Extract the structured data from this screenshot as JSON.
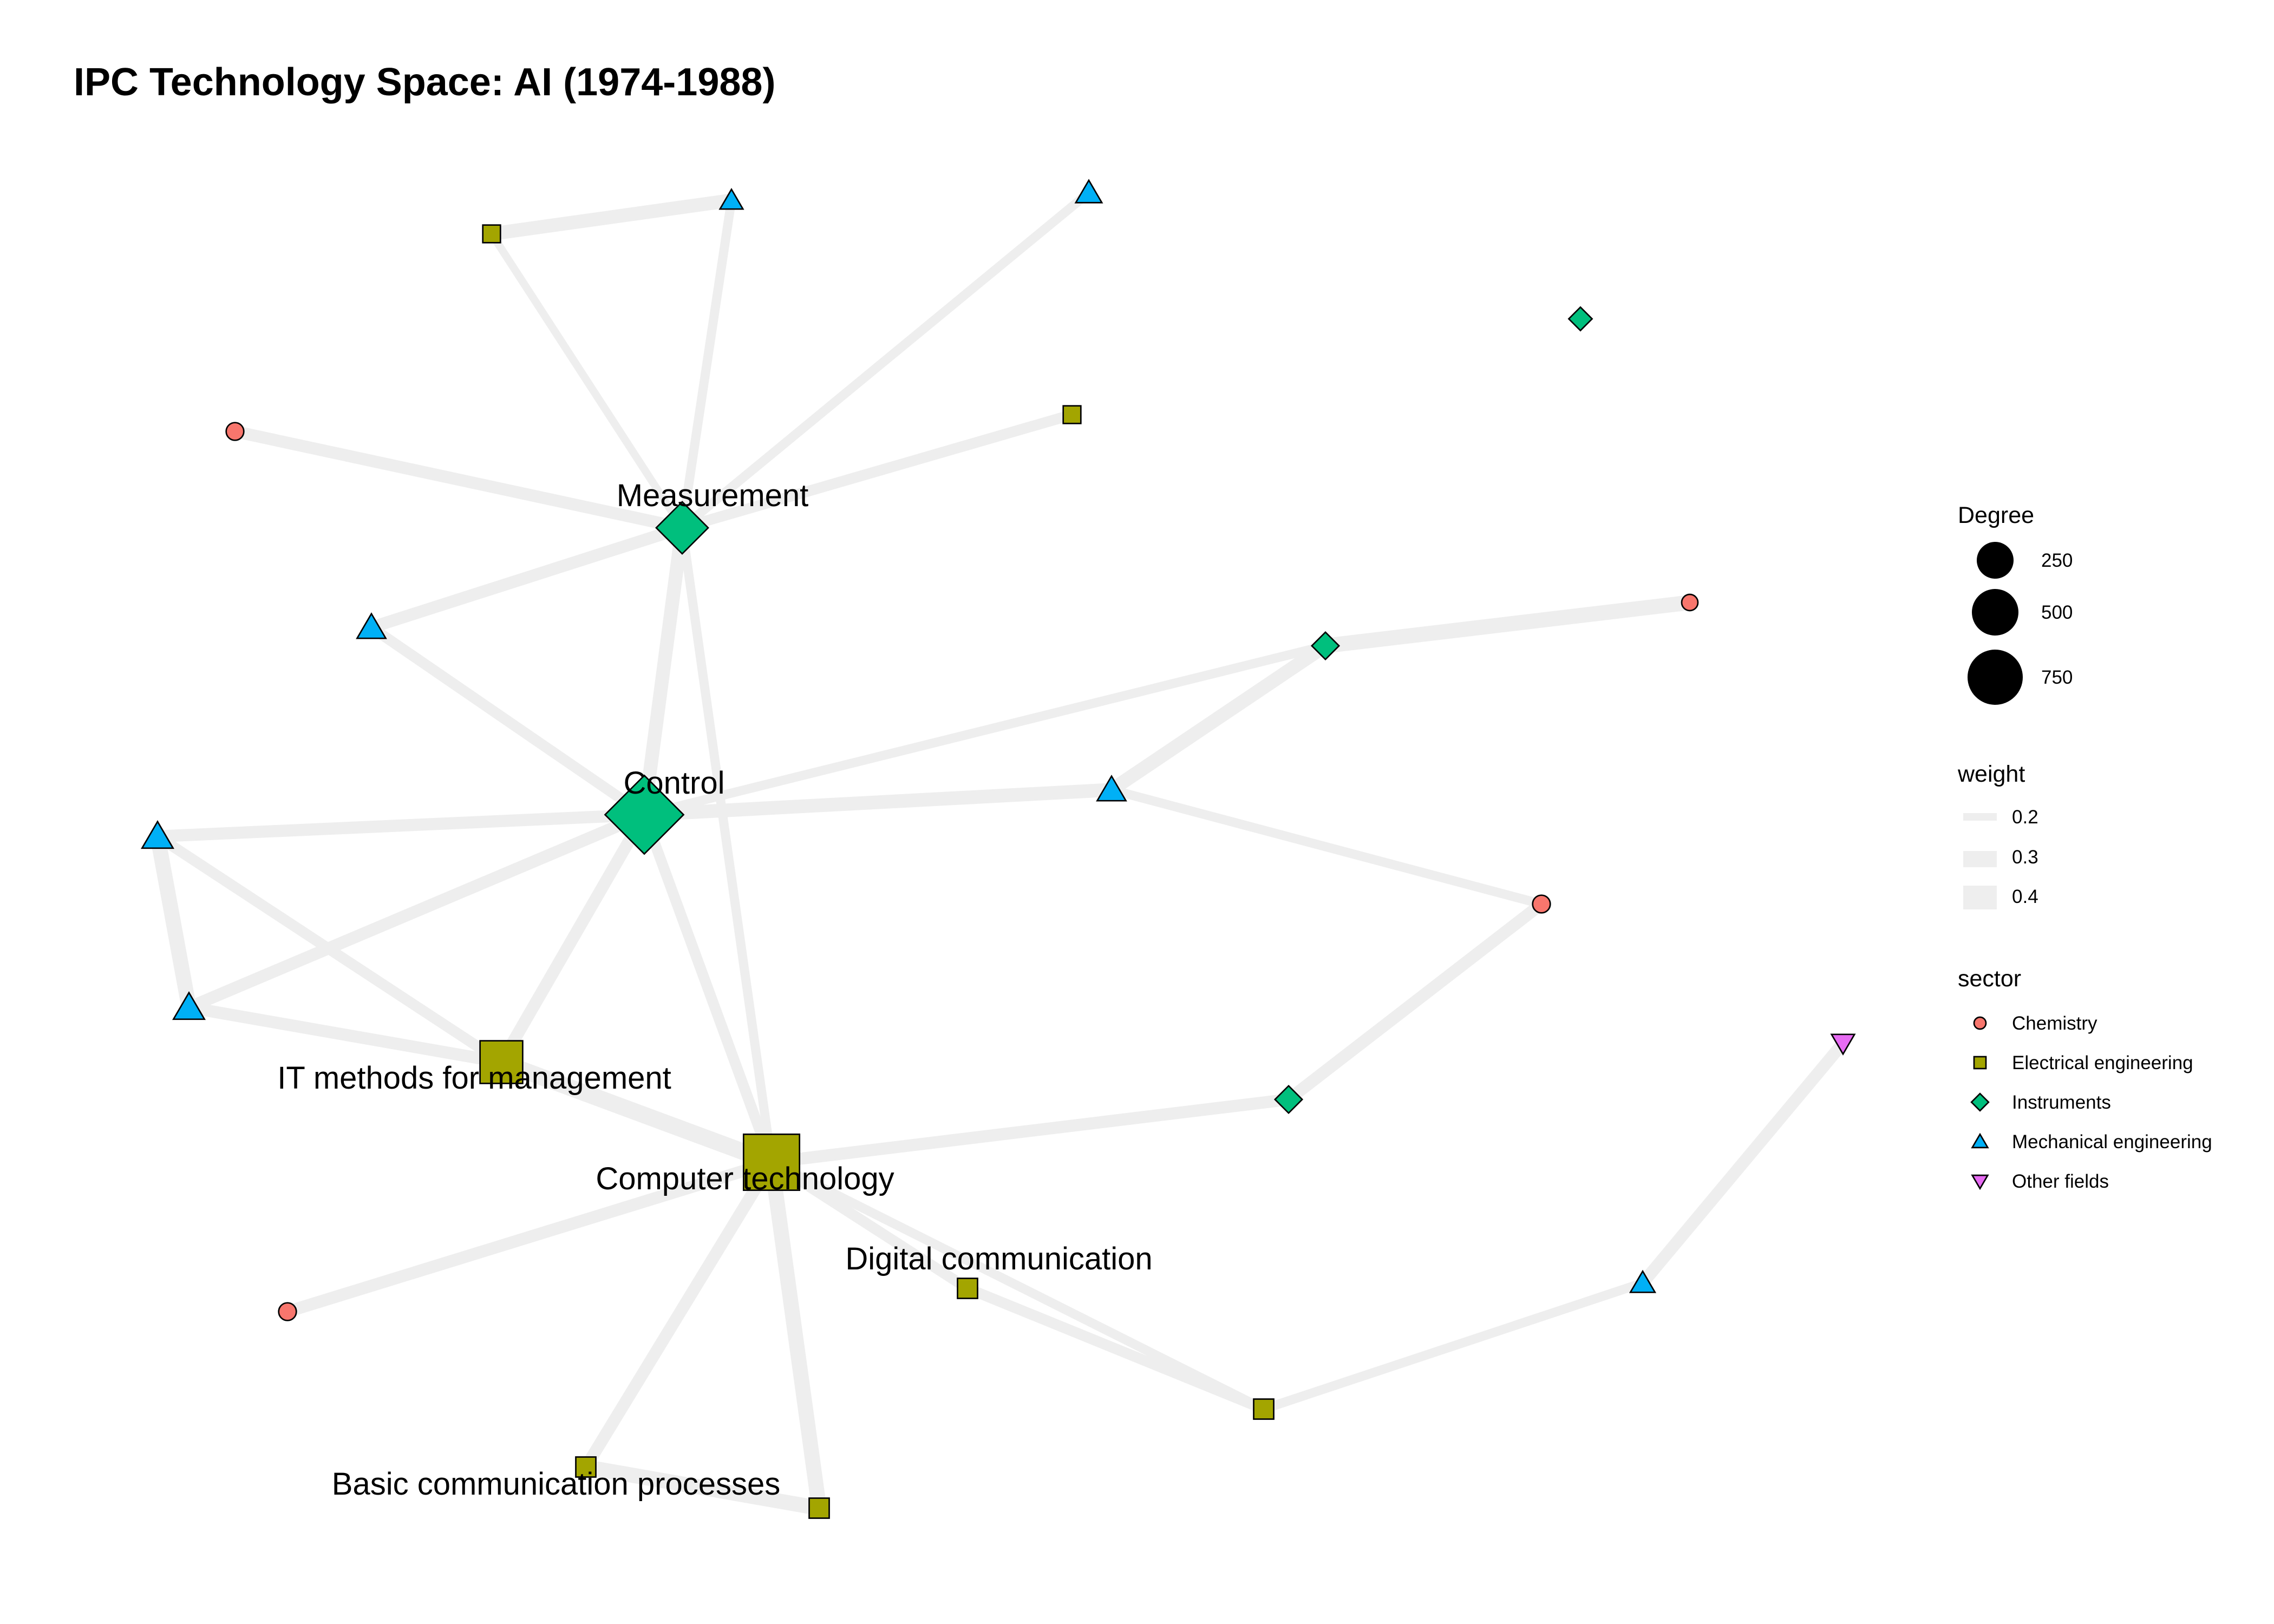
{
  "title": "IPC Technology Space: AI (1974-1988)",
  "colors": {
    "Chemistry": "#F8766D",
    "Electrical engineering": "#A3A500",
    "Instruments": "#00BF7D",
    "Mechanical engineering": "#00B0F6",
    "Other fields": "#E76BF3",
    "edge": "#eeeeee"
  },
  "shapes": {
    "Chemistry": "circle",
    "Electrical engineering": "square",
    "Instruments": "diamond",
    "Mechanical engineering": "triangle-up",
    "Other fields": "triangle-down"
  },
  "nodes": [
    {
      "id": "control",
      "sector": "Instruments",
      "degree": 800,
      "label": "Control"
    },
    {
      "id": "measurement",
      "sector": "Instruments",
      "degree": 300,
      "label": "Measurement"
    },
    {
      "id": "computer",
      "sector": "Electrical engineering",
      "degree": 850,
      "label": "Computer technology"
    },
    {
      "id": "itmethods",
      "sector": "Electrical engineering",
      "degree": 450,
      "label": "IT methods for management"
    },
    {
      "id": "digital",
      "sector": "Electrical engineering",
      "degree": 60,
      "label": "Digital communication"
    },
    {
      "id": "basic",
      "sector": "Electrical engineering",
      "degree": 60,
      "label": "Basic communication processes"
    },
    {
      "id": "ee_top",
      "sector": "Electrical engineering",
      "degree": 40,
      "label": ""
    },
    {
      "id": "ee_mid",
      "sector": "Electrical engineering",
      "degree": 40,
      "label": ""
    },
    {
      "id": "ee_bottom",
      "sector": "Electrical engineering",
      "degree": 60,
      "label": ""
    },
    {
      "id": "ee_right",
      "sector": "Electrical engineering",
      "degree": 60,
      "label": ""
    },
    {
      "id": "me_top1",
      "sector": "Mechanical engineering",
      "degree": 40,
      "label": ""
    },
    {
      "id": "me_top2",
      "sector": "Mechanical engineering",
      "degree": 60,
      "label": ""
    },
    {
      "id": "me_left",
      "sector": "Mechanical engineering",
      "degree": 80,
      "label": ""
    },
    {
      "id": "me_far_left",
      "sector": "Mechanical engineering",
      "degree": 100,
      "label": ""
    },
    {
      "id": "me_low_left",
      "sector": "Mechanical engineering",
      "degree": 100,
      "label": ""
    },
    {
      "id": "me_center",
      "sector": "Mechanical engineering",
      "degree": 80,
      "label": ""
    },
    {
      "id": "me_right",
      "sector": "Mechanical engineering",
      "degree": 50,
      "label": ""
    },
    {
      "id": "in_top",
      "sector": "Instruments",
      "degree": 30,
      "label": ""
    },
    {
      "id": "in_right",
      "sector": "Instruments",
      "degree": 50,
      "label": ""
    },
    {
      "id": "in_low",
      "sector": "Instruments",
      "degree": 50,
      "label": ""
    },
    {
      "id": "ch_top",
      "sector": "Chemistry",
      "degree": 40,
      "label": ""
    },
    {
      "id": "ch_right",
      "sector": "Chemistry",
      "degree": 30,
      "label": ""
    },
    {
      "id": "ch_mid",
      "sector": "Chemistry",
      "degree": 40,
      "label": ""
    },
    {
      "id": "ch_low",
      "sector": "Chemistry",
      "degree": 40,
      "label": ""
    },
    {
      "id": "of_right",
      "sector": "Other fields",
      "degree": 40,
      "label": ""
    }
  ],
  "edges": [
    {
      "source": "ee_top",
      "target": "me_top1",
      "weight": 0.35
    },
    {
      "source": "ee_top",
      "target": "measurement",
      "weight": 0.15
    },
    {
      "source": "me_top1",
      "target": "measurement",
      "weight": 0.2
    },
    {
      "source": "me_top2",
      "target": "measurement",
      "weight": 0.2
    },
    {
      "source": "ch_top",
      "target": "measurement",
      "weight": 0.3
    },
    {
      "source": "ee_mid",
      "target": "measurement",
      "weight": 0.25
    },
    {
      "source": "me_left",
      "target": "measurement",
      "weight": 0.3
    },
    {
      "source": "me_left",
      "target": "control",
      "weight": 0.25
    },
    {
      "source": "measurement",
      "target": "control",
      "weight": 0.35
    },
    {
      "source": "measurement",
      "target": "computer",
      "weight": 0.2
    },
    {
      "source": "in_right",
      "target": "ch_right",
      "weight": 0.4
    },
    {
      "source": "in_right",
      "target": "control",
      "weight": 0.2
    },
    {
      "source": "in_right",
      "target": "me_center",
      "weight": 0.35
    },
    {
      "source": "me_center",
      "target": "control",
      "weight": 0.35
    },
    {
      "source": "me_center",
      "target": "ch_mid",
      "weight": 0.2
    },
    {
      "source": "me_far_left",
      "target": "control",
      "weight": 0.3
    },
    {
      "source": "me_far_left",
      "target": "me_low_left",
      "weight": 0.4
    },
    {
      "source": "me_far_left",
      "target": "itmethods",
      "weight": 0.25
    },
    {
      "source": "me_low_left",
      "target": "control",
      "weight": 0.3
    },
    {
      "source": "me_low_left",
      "target": "itmethods",
      "weight": 0.3
    },
    {
      "source": "control",
      "target": "itmethods",
      "weight": 0.3
    },
    {
      "source": "control",
      "target": "computer",
      "weight": 0.25
    },
    {
      "source": "itmethods",
      "target": "computer",
      "weight": 0.45
    },
    {
      "source": "computer",
      "target": "in_low",
      "weight": 0.3
    },
    {
      "source": "in_low",
      "target": "ch_mid",
      "weight": 0.3
    },
    {
      "source": "computer",
      "target": "ch_low",
      "weight": 0.3
    },
    {
      "source": "computer",
      "target": "digital",
      "weight": 0.25
    },
    {
      "source": "computer",
      "target": "ee_bottom",
      "weight": 0.4
    },
    {
      "source": "computer",
      "target": "basic",
      "weight": 0.3
    },
    {
      "source": "computer",
      "target": "ee_right",
      "weight": 0.2
    },
    {
      "source": "basic",
      "target": "ee_bottom",
      "weight": 0.4
    },
    {
      "source": "digital",
      "target": "ee_right",
      "weight": 0.25
    },
    {
      "source": "ee_right",
      "target": "me_right",
      "weight": 0.2
    },
    {
      "source": "me_right",
      "target": "of_right",
      "weight": 0.3
    }
  ],
  "legend": {
    "degree": {
      "title": "Degree",
      "items": [
        {
          "label": "250",
          "value": 250
        },
        {
          "label": "500",
          "value": 500
        },
        {
          "label": "750",
          "value": 750
        }
      ]
    },
    "weight": {
      "title": "weight",
      "items": [
        {
          "label": "0.2",
          "value": 0.2
        },
        {
          "label": "0.3",
          "value": 0.3
        },
        {
          "label": "0.4",
          "value": 0.4
        }
      ]
    },
    "sector": {
      "title": "sector",
      "items": [
        "Chemistry",
        "Electrical engineering",
        "Instruments",
        "Mechanical engineering",
        "Other fields"
      ]
    }
  }
}
